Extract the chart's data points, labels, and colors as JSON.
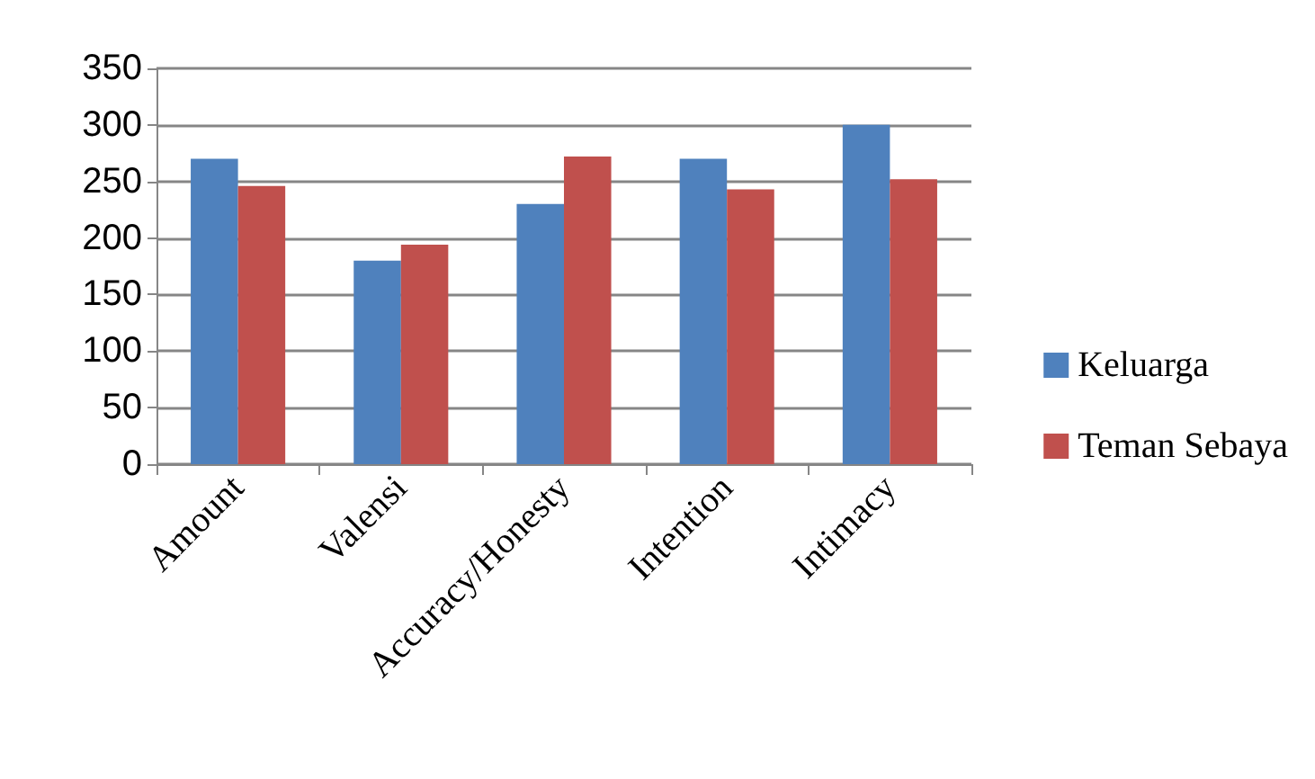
{
  "chart_data": {
    "type": "bar",
    "categories": [
      "Amount",
      "Valensi",
      "Accuracy/Honesty",
      "Intention",
      "Intimacy"
    ],
    "series": [
      {
        "name": "Keluarga",
        "color": "#4f81bd",
        "values": [
          270,
          180,
          230,
          270,
          300
        ]
      },
      {
        "name": "Teman Sebaya",
        "color": "#c0504d",
        "values": [
          246,
          194,
          272,
          243,
          252
        ]
      }
    ],
    "ylim": [
      0,
      350
    ],
    "yticks": [
      0,
      50,
      100,
      150,
      200,
      250,
      300,
      350
    ],
    "grid": "y",
    "legend": "right"
  }
}
